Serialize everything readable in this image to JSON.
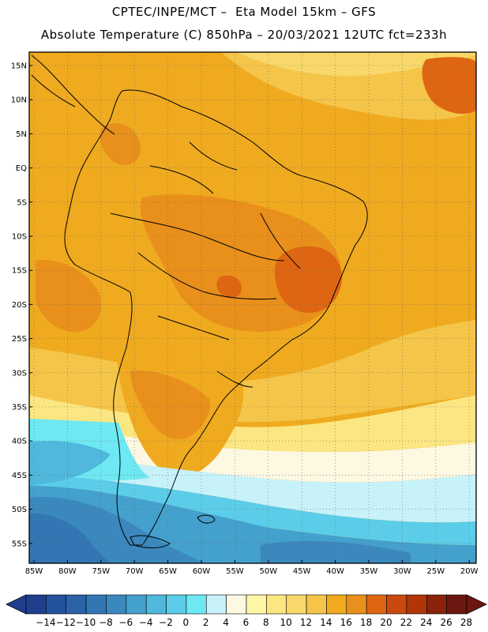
{
  "header": {
    "line1": "CPTEC/INPE/MCT –  Eta Model 15km – GFS",
    "line2": "Absolute Temperature (C) 850hPa – 20/03/2021 12UTC fct=233h"
  },
  "lat_labels": [
    "15N",
    "10N",
    "5N",
    "EQ",
    "5S",
    "10S",
    "15S",
    "20S",
    "25S",
    "30S",
    "35S",
    "40S",
    "45S",
    "50S",
    "55S"
  ],
  "lon_labels": [
    "85W",
    "80W",
    "75W",
    "70W",
    "65W",
    "60W",
    "55W",
    "50W",
    "45W",
    "40W",
    "35W",
    "30W",
    "25W",
    "20W"
  ],
  "colorbar": {
    "labels": [
      "-14",
      "-12",
      "-10",
      "-8",
      "-6",
      "-4",
      "-2",
      "0",
      "2",
      "4",
      "6",
      "8",
      "10",
      "12",
      "14",
      "16",
      "18",
      "20",
      "22",
      "24",
      "26",
      "28"
    ],
    "colors": [
      "#1e3f8c",
      "#24529c",
      "#2b62a8",
      "#3376b4",
      "#3b88be",
      "#44a0cc",
      "#4fb8dc",
      "#5ccde8",
      "#6ee8f2",
      "#c8f2fa",
      "#fdf8e2",
      "#fff6a8",
      "#fbe681",
      "#f8d86a",
      "#f4c548",
      "#efaa1f",
      "#e8901b",
      "#de6612",
      "#c84a0e",
      "#b03609",
      "#8a230a",
      "#6c170f"
    ]
  }
}
